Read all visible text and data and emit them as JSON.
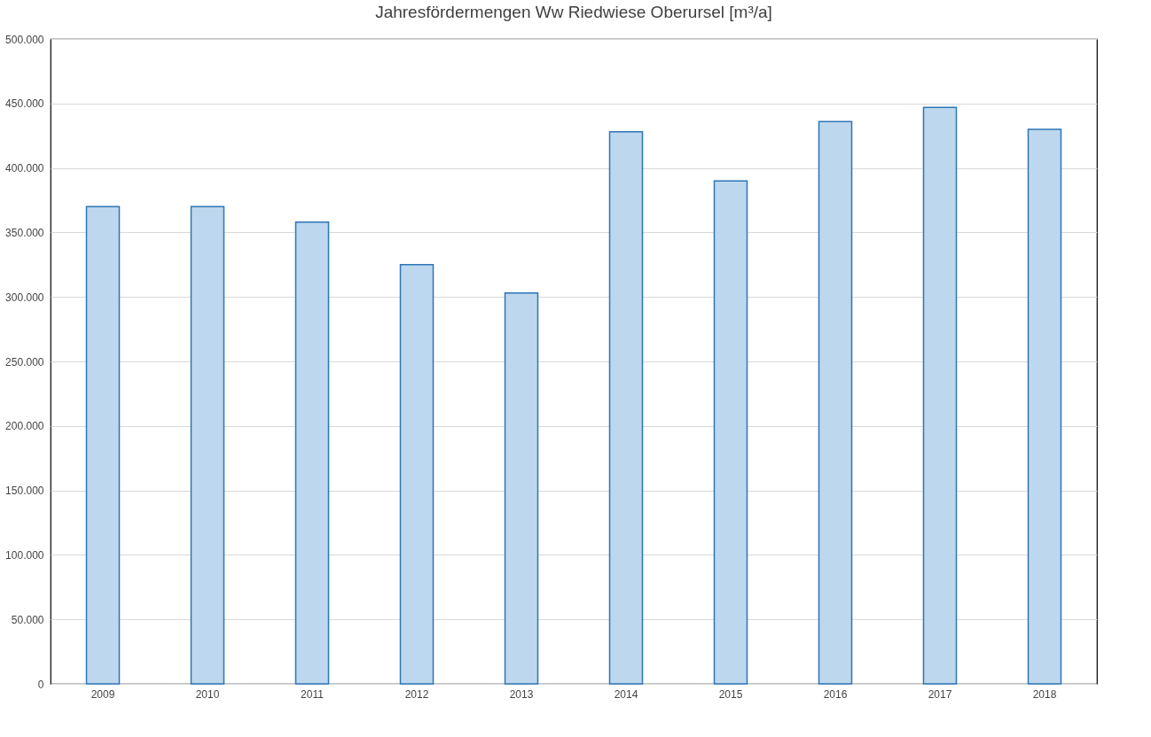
{
  "chart_data": {
    "type": "bar",
    "title": "Jahresfördermengen Ww Riedwiese Oberursel [m³/a]",
    "categories": [
      "2009",
      "2010",
      "2011",
      "2012",
      "2013",
      "2014",
      "2015",
      "2016",
      "2017",
      "2018"
    ],
    "values": [
      370000,
      370000,
      358000,
      325000,
      303000,
      428000,
      390000,
      436000,
      447000,
      430000
    ],
    "color": "#bdd7ee",
    "ylim": [
      0,
      500000
    ],
    "yticks": [
      0,
      {
        "value": 50000,
        "label": "50.000"
      },
      {
        "value": 100000,
        "label": "100.000"
      },
      {
        "value": 150000,
        "label": "150.000"
      },
      {
        "value": 200000,
        "label": "200.000"
      },
      {
        "value": 250000,
        "label": "250.000"
      },
      {
        "value": 300000,
        "label": "300.000"
      },
      {
        "value": 350000,
        "label": "350.000"
      },
      {
        "value": 400000,
        "label": "400.000"
      },
      {
        "value": 450000,
        "label": "450.000"
      },
      {
        "value": 500000,
        "label": "500.000"
      }
    ],
    "grid": "y"
  }
}
